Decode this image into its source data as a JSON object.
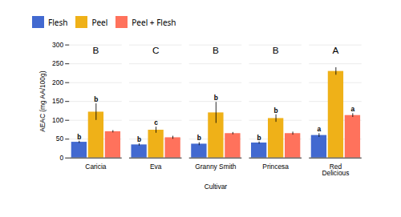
{
  "chart_data": {
    "type": "bar",
    "categories": [
      "Caricia",
      "Eva",
      "Granny Smith",
      "Princesa",
      "Red\nDelicious"
    ],
    "series": [
      {
        "name": "Flesh",
        "values": [
          42,
          35,
          37,
          40,
          60
        ],
        "errors": [
          3,
          3,
          4,
          3,
          5
        ],
        "letters": [
          "b",
          "b",
          "b",
          "b",
          "a"
        ]
      },
      {
        "name": "Peel",
        "values": [
          122,
          74,
          120,
          105,
          230
        ],
        "errors": [
          22,
          8,
          28,
          10,
          10
        ],
        "letters": [
          "b",
          "c",
          "b",
          "b",
          null
        ]
      },
      {
        "name": "Peel + Flesh",
        "values": [
          70,
          54,
          65,
          65,
          113
        ],
        "errors": [
          3,
          4,
          3,
          4,
          5
        ],
        "letters": [
          null,
          null,
          null,
          null,
          "a"
        ]
      }
    ],
    "group_letters": [
      "B",
      "C",
      "B",
      "B",
      "A"
    ],
    "xlabel": "Cultivar",
    "ylabel": "AEAC (mg AA/100g)",
    "ylim": [
      0,
      300
    ],
    "yticks": [
      0,
      50,
      100,
      150,
      200,
      250,
      300
    ],
    "grid": true,
    "legend": "top"
  }
}
